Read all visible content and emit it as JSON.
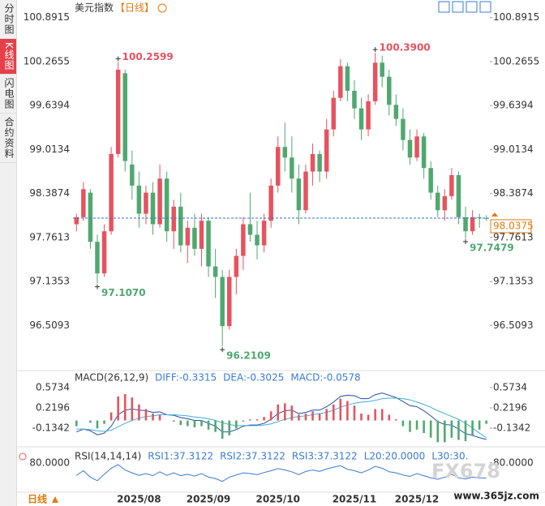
{
  "sidebar": {
    "tabs": [
      "分时图",
      "K线图",
      "闪电图",
      "合约资料"
    ],
    "active": 1
  },
  "footer": {
    "period_button": "日线"
  },
  "watermark": {
    "logo": "FX678",
    "site": "www.365jz.com"
  },
  "chart_data": [
    {
      "type": "candlestick",
      "title": "美元指数",
      "subtitle": "【日线】",
      "categories": [
        null,
        null,
        null,
        null,
        null,
        null,
        null,
        null,
        null,
        "2025/08",
        null,
        null,
        null,
        null,
        null,
        null,
        null,
        null,
        null,
        "2025/09",
        null,
        null,
        null,
        null,
        null,
        null,
        null,
        null,
        null,
        "2025/10",
        null,
        null,
        null,
        null,
        null,
        null,
        null,
        null,
        null,
        null,
        "2025/11",
        null,
        null,
        null,
        null,
        null,
        null,
        null,
        null,
        "2025/12",
        null,
        null,
        null,
        null,
        null,
        null,
        null,
        null,
        null,
        null
      ],
      "open": [
        97.95,
        98.05,
        98.4,
        97.7,
        97.25,
        97.85,
        98.95,
        100.1,
        98.8,
        98.5,
        98.1,
        98.4,
        97.95,
        98.6,
        97.85,
        98.2,
        97.65,
        97.9,
        97.6,
        98.0,
        97.35,
        97.2,
        96.5,
        97.2,
        97.5,
        97.95,
        97.8,
        97.65,
        98.0,
        98.5,
        99.05,
        98.9,
        98.6,
        98.15,
        98.7,
        98.95,
        98.7,
        99.3,
        99.75,
        100.2,
        99.85,
        99.6,
        99.3,
        99.7,
        100.25,
        100.05,
        99.65,
        99.45,
        99.15,
        98.9,
        99.2,
        98.75,
        98.4,
        98.15,
        98.35,
        98.65,
        98.05,
        97.85,
        98.05,
        98.04
      ],
      "high": [
        98.1,
        98.55,
        98.45,
        97.8,
        97.95,
        99.05,
        100.2599,
        100.15,
        99.0,
        98.7,
        98.5,
        98.55,
        98.8,
        98.7,
        98.3,
        98.4,
        98.0,
        98.1,
        98.1,
        98.05,
        97.6,
        97.3,
        97.3,
        97.6,
        98.05,
        98.4,
        98.0,
        98.1,
        98.6,
        99.2,
        99.4,
        99.2,
        98.8,
        98.8,
        99.1,
        99.0,
        99.45,
        99.85,
        100.3,
        100.25,
        100.0,
        99.75,
        99.8,
        100.39,
        100.35,
        100.15,
        99.8,
        99.6,
        99.3,
        99.3,
        99.25,
        98.85,
        98.5,
        98.45,
        98.75,
        98.7,
        98.2,
        98.15,
        98.1,
        98.08
      ],
      "low": [
        97.85,
        98.0,
        97.6,
        97.107,
        97.2,
        97.8,
        98.9,
        98.7,
        98.3,
        97.9,
        97.95,
        97.8,
        97.9,
        97.7,
        97.6,
        97.55,
        97.4,
        97.5,
        97.35,
        97.2,
        96.9,
        96.2109,
        96.45,
        96.95,
        97.3,
        97.7,
        97.45,
        97.55,
        97.9,
        98.4,
        98.7,
        98.4,
        97.95,
        98.1,
        98.5,
        98.55,
        98.6,
        99.2,
        99.7,
        99.7,
        99.45,
        99.15,
        99.2,
        99.65,
        99.9,
        99.5,
        99.35,
        99.0,
        98.8,
        98.85,
        98.6,
        98.3,
        98.05,
        98.0,
        98.3,
        97.95,
        97.7479,
        97.8,
        97.9,
        98.0
      ],
      "close": [
        98.05,
        98.45,
        97.7,
        97.25,
        97.85,
        98.95,
        100.15,
        98.85,
        98.5,
        98.1,
        98.4,
        97.95,
        98.6,
        97.85,
        98.2,
        97.65,
        97.9,
        97.6,
        98.0,
        97.35,
        97.2,
        96.5,
        97.2,
        97.5,
        97.95,
        97.8,
        97.65,
        98.0,
        98.5,
        99.05,
        98.9,
        98.6,
        98.15,
        98.7,
        98.95,
        98.7,
        99.3,
        99.75,
        100.2,
        99.85,
        99.6,
        99.3,
        99.7,
        100.25,
        100.05,
        99.65,
        99.45,
        99.15,
        98.9,
        99.2,
        98.75,
        98.4,
        98.15,
        98.35,
        98.65,
        98.05,
        97.85,
        98.05,
        98.04,
        98.0375
      ],
      "up_color": "#e5535f",
      "down_color": "#4fa86f",
      "ylim": [
        95.89,
        101.05
      ],
      "yticks": [
        100.8915,
        100.2655,
        99.6394,
        99.0134,
        98.3874,
        97.7613,
        97.1353,
        96.5093
      ],
      "current_price": 98.0375,
      "high_labels": [
        100.2599,
        {
          "value": 100.39,
          "label": "100.3900"
        }
      ],
      "low_labels": [
        {
          "value": 97.107,
          "label": "97.1070"
        },
        96.2109,
        97.7479
      ]
    },
    {
      "type": "macd",
      "title": "MACD(26,12,9)",
      "legend_color": "#3a7bd5",
      "series": [
        {
          "name": "DIFF:-0.3315",
          "color": "#1f4fa8",
          "values": [
            -0.2,
            -0.15,
            -0.18,
            -0.25,
            -0.22,
            -0.1,
            0.1,
            0.18,
            0.2,
            0.18,
            0.17,
            0.14,
            0.15,
            0.1,
            0.09,
            0.05,
            0.03,
            0.0,
            0.0,
            -0.05,
            -0.1,
            -0.2,
            -0.2,
            -0.16,
            -0.1,
            -0.08,
            -0.08,
            -0.05,
            0.02,
            0.12,
            0.17,
            0.18,
            0.12,
            0.14,
            0.18,
            0.18,
            0.24,
            0.32,
            0.42,
            0.44,
            0.43,
            0.38,
            0.38,
            0.45,
            0.48,
            0.44,
            0.4,
            0.33,
            0.26,
            0.24,
            0.17,
            0.08,
            -0.02,
            -0.07,
            -0.08,
            -0.15,
            -0.23,
            -0.26,
            -0.3,
            -0.3315
          ]
        },
        {
          "name": "DEA:-0.3025",
          "color": "#3fb0d8",
          "values": [
            -0.15,
            -0.15,
            -0.16,
            -0.18,
            -0.19,
            -0.17,
            -0.11,
            -0.05,
            0.0,
            0.04,
            0.07,
            0.08,
            0.1,
            0.1,
            0.1,
            0.09,
            0.08,
            0.06,
            0.05,
            0.03,
            0.0,
            -0.04,
            -0.07,
            -0.09,
            -0.09,
            -0.09,
            -0.09,
            -0.08,
            -0.06,
            -0.02,
            0.02,
            0.05,
            0.07,
            0.08,
            0.1,
            0.12,
            0.14,
            0.18,
            0.23,
            0.27,
            0.3,
            0.32,
            0.33,
            0.35,
            0.38,
            0.39,
            0.39,
            0.38,
            0.36,
            0.32,
            0.28,
            0.23,
            0.17,
            0.12,
            0.07,
            0.02,
            -0.05,
            -0.13,
            -0.22,
            -0.3025
          ]
        },
        {
          "name": "MACD:-0.0578",
          "type": "bar",
          "up_color": "#e5535f",
          "down_color": "#4fa86f",
          "values": [
            -0.1,
            0.0,
            -0.04,
            -0.14,
            -0.06,
            0.14,
            0.42,
            0.46,
            0.4,
            0.28,
            0.2,
            0.12,
            0.1,
            0.0,
            -0.02,
            -0.08,
            -0.1,
            -0.12,
            -0.1,
            -0.16,
            -0.2,
            -0.32,
            -0.26,
            -0.14,
            -0.02,
            0.02,
            0.02,
            0.06,
            0.16,
            0.28,
            0.3,
            0.26,
            0.1,
            0.12,
            0.16,
            0.12,
            0.2,
            0.28,
            0.38,
            0.34,
            0.26,
            0.12,
            0.1,
            0.2,
            0.2,
            0.1,
            0.02,
            -0.1,
            -0.2,
            -0.16,
            -0.22,
            -0.3,
            -0.38,
            -0.38,
            -0.3,
            -0.34,
            -0.36,
            -0.26,
            -0.16,
            -0.0578
          ]
        }
      ],
      "ylim": [
        -0.417,
        0.828
      ],
      "yticks": [
        0.5734,
        0.2196,
        -0.1342
      ]
    },
    {
      "type": "rsi",
      "title": "RSI(14,14,14)",
      "legend_color": "#3a7bd5",
      "series": [
        {
          "name": "RSI1:37.3122",
          "color": "#3a7bd5",
          "values": [
            45,
            58,
            40,
            30,
            48,
            65,
            75,
            60,
            52,
            45,
            50,
            44,
            55,
            45,
            52,
            44,
            48,
            43,
            50,
            40,
            36,
            28,
            40,
            46,
            52,
            50,
            47,
            53,
            58,
            64,
            60,
            55,
            47,
            56,
            60,
            56,
            63,
            68,
            72,
            62,
            58,
            52,
            60,
            70,
            65,
            55,
            52,
            46,
            42,
            50,
            44,
            38,
            34,
            40,
            48,
            38,
            35,
            40,
            38,
            37.3122
          ]
        }
      ],
      "legend_extra": [
        "RSI2:37.3122",
        "RSI3:37.3122",
        "L20:20.0000",
        "L30:30."
      ],
      "ylim": [
        0,
        100
      ],
      "yticks": [
        {
          "value": 80,
          "label": "80.0000"
        }
      ]
    }
  ]
}
